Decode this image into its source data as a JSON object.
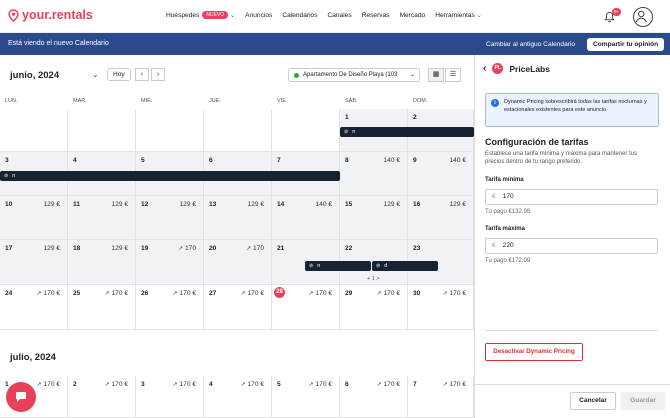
{
  "brand": {
    "logo_text": "your.rentals",
    "accent": "#e8425a",
    "banner_color": "#2a4a8c"
  },
  "nav": {
    "items": [
      {
        "label": "Huéspedes",
        "badge": "NUEVO",
        "dropdown": true
      },
      {
        "label": "Anuncios"
      },
      {
        "label": "Calendarios"
      },
      {
        "label": "Canales"
      },
      {
        "label": "Reservas"
      },
      {
        "label": "Mercado"
      },
      {
        "label": "Herramientas",
        "dropdown": true
      }
    ],
    "notification_count": "9+"
  },
  "banner": {
    "message": "Está viendo el nuevo Calendario",
    "switch_back": "Cambiar al antiguo Calendario",
    "feedback_button": "Compartir tu opinión"
  },
  "calendar": {
    "month_label": "junio, 2024",
    "today_button": "Hoy",
    "prev_icon": "chevron-left-icon",
    "next_icon": "chevron-right-icon",
    "property": "Apartamento De Diseño Playa (103",
    "weekdays": [
      "LUN.",
      "MAR.",
      "MIÉ.",
      "JUE.",
      "VIE.",
      "SÁB.",
      "DOM."
    ],
    "weeks": [
      [
        {
          "d": "",
          "p": ""
        },
        {
          "d": "",
          "p": ""
        },
        {
          "d": "",
          "p": ""
        },
        {
          "d": "",
          "p": ""
        },
        {
          "d": "",
          "p": ""
        },
        {
          "d": "1",
          "p": ""
        },
        {
          "d": "2",
          "p": ""
        }
      ],
      [
        {
          "d": "3",
          "p": ""
        },
        {
          "d": "4",
          "p": ""
        },
        {
          "d": "5",
          "p": ""
        },
        {
          "d": "6",
          "p": ""
        },
        {
          "d": "7",
          "p": ""
        },
        {
          "d": "8",
          "p": "140 €"
        },
        {
          "d": "9",
          "p": "140 €"
        }
      ],
      [
        {
          "d": "10",
          "p": "129 €"
        },
        {
          "d": "11",
          "p": "129 €"
        },
        {
          "d": "12",
          "p": "129 €"
        },
        {
          "d": "13",
          "p": "129 €"
        },
        {
          "d": "14",
          "p": "140 €"
        },
        {
          "d": "15",
          "p": "129 €"
        },
        {
          "d": "16",
          "p": "129 €"
        }
      ],
      [
        {
          "d": "17",
          "p": "129 €"
        },
        {
          "d": "18",
          "p": "129 €"
        },
        {
          "d": "19",
          "p": "170",
          "t": 1
        },
        {
          "d": "20",
          "p": "170",
          "t": 1
        },
        {
          "d": "21",
          "p": ""
        },
        {
          "d": "22",
          "p": ""
        },
        {
          "d": "23",
          "p": ""
        }
      ],
      [
        {
          "d": "24",
          "p": "170 €",
          "t": 1
        },
        {
          "d": "25",
          "p": "170 €",
          "t": 1
        },
        {
          "d": "26",
          "p": "170 €",
          "t": 1
        },
        {
          "d": "27",
          "p": "170 €",
          "t": 1
        },
        {
          "d": "28",
          "p": "170 €",
          "t": 1,
          "today": true
        },
        {
          "d": "29",
          "p": "170 €",
          "t": 1
        },
        {
          "d": "30",
          "p": "170 €",
          "t": 1
        }
      ]
    ],
    "july_label": "julio, 2024",
    "july_first_row": [
      {
        "d": "1",
        "p": "170 €",
        "t": 1
      },
      {
        "d": "2",
        "p": "170 €",
        "t": 1
      },
      {
        "d": "3",
        "p": "170 €",
        "t": 1
      },
      {
        "d": "4",
        "p": "170 €",
        "t": 1
      },
      {
        "d": "5",
        "p": "170 €",
        "t": 1
      },
      {
        "d": "6",
        "p": "170 €",
        "t": 1
      },
      {
        "d": "7",
        "p": "170 €",
        "t": 1
      }
    ],
    "bookings": [
      {
        "label": "n",
        "row": 0,
        "start": 5,
        "span": 2
      },
      {
        "label": "n",
        "row": 1,
        "start": 0,
        "span": 5
      },
      {
        "label": "n",
        "row": 3,
        "start": 4,
        "span": 1
      },
      {
        "label": "d",
        "row": 3,
        "start": 5,
        "span": 1
      }
    ],
    "more_label": "+ 1 >"
  },
  "panel": {
    "title": "PriceLabs",
    "info": "Dynamic Pricing sobrescribirá todas las tarifas nocturnas y estacionales existentes para este anuncio.",
    "section_title": "Configuración de tarifas",
    "section_desc": "Establece una tarifa mínima y máxima para mantener tus precios dentro de tu rango preferido.",
    "min_label": "Tarifa mínima",
    "min_currency": "€",
    "min_value": "170",
    "min_hint": "Tu pago €132.98",
    "max_label": "Tarifa máxima",
    "max_currency": "€",
    "max_value": "220",
    "max_hint": "Tu pago €172.09",
    "deactivate": "Desactivar Dynamic Pricing",
    "cancel": "Cancelar",
    "save": "Guardar"
  }
}
